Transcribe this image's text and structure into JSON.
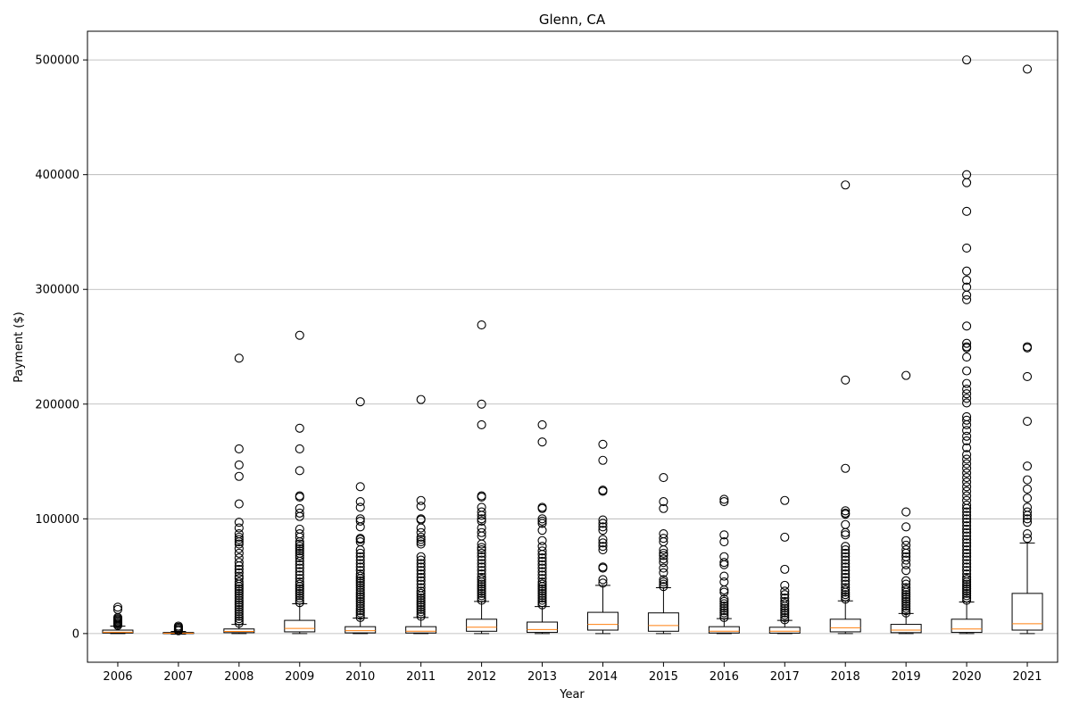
{
  "chart_data": {
    "type": "box",
    "title": "Glenn, CA",
    "xlabel": "Year",
    "ylabel": "Payment ($)",
    "ylim": [
      -25000,
      525000
    ],
    "yticks": [
      0,
      100000,
      200000,
      300000,
      400000,
      500000
    ],
    "ytick_labels": [
      "0",
      "100000",
      "200000",
      "300000",
      "400000",
      "500000"
    ],
    "grid": "y",
    "colors": {
      "box": "#000000",
      "median": "#ff7f0e",
      "grid": "#b0b0b0"
    },
    "categories": [
      "2006",
      "2007",
      "2008",
      "2009",
      "2010",
      "2011",
      "2012",
      "2013",
      "2014",
      "2015",
      "2016",
      "2017",
      "2018",
      "2019",
      "2020",
      "2021"
    ],
    "boxes": [
      {
        "year": "2006",
        "whislo": 0,
        "q1": 500,
        "med": 1200,
        "q3": 3000,
        "whishi": 6500,
        "fliers": [
          7000,
          8000,
          9000,
          10000,
          11000,
          12000,
          13000,
          14000,
          21000,
          23000
        ]
      },
      {
        "year": "2007",
        "whislo": -500,
        "q1": 0,
        "med": 300,
        "q3": 900,
        "whishi": 1800,
        "fliers": [
          2500,
          3500,
          4500,
          5500,
          6500
        ]
      },
      {
        "year": "2008",
        "whislo": 0,
        "q1": 800,
        "med": 1800,
        "q3": 4000,
        "whishi": 8000,
        "fliers": [
          9000,
          11000,
          13000,
          15000,
          17000,
          19000,
          21000,
          23000,
          25000,
          27000,
          29000,
          31000,
          33000,
          35000,
          37000,
          39000,
          41000,
          43000,
          45000,
          48000,
          50000,
          53000,
          56000,
          59000,
          62000,
          66000,
          70000,
          74000,
          78000,
          80000,
          82000,
          84000,
          87000,
          92000,
          97000,
          113000,
          137000,
          147000,
          161000,
          240000
        ]
      },
      {
        "year": "2009",
        "whislo": 0,
        "q1": 1500,
        "med": 4500,
        "q3": 11500,
        "whishi": 26000,
        "fliers": [
          27000,
          29000,
          31000,
          33000,
          35000,
          37000,
          39000,
          41000,
          43000,
          45000,
          48000,
          51000,
          54000,
          57000,
          60000,
          63000,
          66000,
          68000,
          70000,
          72000,
          74000,
          76000,
          78000,
          80000,
          84000,
          87000,
          91000,
          102000,
          105000,
          109000,
          119000,
          120000,
          142000,
          161000,
          179000,
          260000
        ]
      },
      {
        "year": "2010",
        "whislo": 0,
        "q1": 600,
        "med": 2500,
        "q3": 6000,
        "whishi": 13500,
        "fliers": [
          14000,
          16000,
          18000,
          20000,
          22000,
          24000,
          26000,
          28000,
          30000,
          32000,
          34000,
          36000,
          38000,
          40000,
          42000,
          44000,
          46000,
          48000,
          50000,
          52000,
          55000,
          58000,
          61000,
          64000,
          67000,
          70000,
          73000,
          80000,
          82000,
          83000,
          93000,
          98000,
          100000,
          110000,
          115000,
          128000,
          202000
        ]
      },
      {
        "year": "2011",
        "whislo": 0,
        "q1": 500,
        "med": 2000,
        "q3": 6000,
        "whishi": 14000,
        "fliers": [
          15000,
          17000,
          19000,
          21000,
          23000,
          25000,
          27000,
          29000,
          31000,
          33000,
          35000,
          37000,
          40000,
          43000,
          46000,
          49000,
          52000,
          55000,
          58000,
          61000,
          64000,
          67000,
          78000,
          80000,
          82000,
          84000,
          88000,
          92000,
          99000,
          100000,
          111000,
          116000,
          204000
        ]
      },
      {
        "year": "2012",
        "whislo": 0,
        "q1": 2000,
        "med": 5500,
        "q3": 12500,
        "whishi": 28000,
        "fliers": [
          29000,
          31000,
          33000,
          35000,
          37000,
          39000,
          41000,
          43000,
          45000,
          47000,
          49000,
          52000,
          55000,
          58000,
          61000,
          64000,
          67000,
          70000,
          73000,
          75000,
          78000,
          85000,
          88000,
          92000,
          98000,
          100000,
          103000,
          106000,
          110000,
          119000,
          120000,
          182000,
          200000,
          269000
        ]
      },
      {
        "year": "2013",
        "whislo": 0,
        "q1": 1000,
        "med": 3500,
        "q3": 10000,
        "whishi": 23500,
        "fliers": [
          25000,
          27000,
          29000,
          31000,
          33000,
          35000,
          37000,
          39000,
          41000,
          43000,
          45000,
          48000,
          51000,
          54000,
          57000,
          60000,
          63000,
          66000,
          69000,
          72000,
          76000,
          81000,
          90000,
          96000,
          98000,
          100000,
          109000,
          110000,
          167000,
          182000
        ]
      },
      {
        "year": "2014",
        "whislo": 0,
        "q1": 3000,
        "med": 8000,
        "q3": 18500,
        "whishi": 42000,
        "fliers": [
          44000,
          47000,
          57000,
          58000,
          73000,
          76000,
          79000,
          82000,
          90000,
          93000,
          96000,
          99000,
          124000,
          125000,
          151000,
          165000
        ]
      },
      {
        "year": "2015",
        "whislo": 0,
        "q1": 2000,
        "med": 7000,
        "q3": 18000,
        "whishi": 40000,
        "fliers": [
          41000,
          43000,
          45000,
          47000,
          53000,
          57000,
          62000,
          65000,
          68000,
          70000,
          73000,
          80000,
          83000,
          87000,
          109000,
          115000,
          136000
        ]
      },
      {
        "year": "2016",
        "whislo": 0,
        "q1": 500,
        "med": 2000,
        "q3": 6000,
        "whishi": 13000,
        "fliers": [
          14000,
          16000,
          18000,
          20000,
          22000,
          24000,
          26000,
          28000,
          30000,
          36000,
          38000,
          45000,
          50000,
          60000,
          62000,
          67000,
          80000,
          86000,
          115000,
          117000
        ]
      },
      {
        "year": "2017",
        "whislo": 0,
        "q1": 400,
        "med": 2000,
        "q3": 5500,
        "whishi": 11500,
        "fliers": [
          12000,
          14000,
          16000,
          18000,
          20000,
          22000,
          24000,
          26000,
          28000,
          31000,
          34000,
          37000,
          42000,
          56000,
          84000,
          116000
        ]
      },
      {
        "year": "2018",
        "whislo": 0,
        "q1": 1500,
        "med": 5000,
        "q3": 12500,
        "whishi": 28500,
        "fliers": [
          30000,
          32000,
          34000,
          36000,
          38000,
          40000,
          43000,
          46000,
          49000,
          52000,
          55000,
          58000,
          61000,
          64000,
          67000,
          70000,
          73000,
          76000,
          86000,
          88000,
          95000,
          104000,
          105000,
          107000,
          144000,
          221000,
          391000
        ]
      },
      {
        "year": "2019",
        "whislo": 0,
        "q1": 800,
        "med": 3000,
        "q3": 8000,
        "whishi": 17500,
        "fliers": [
          18000,
          20000,
          22000,
          24000,
          26000,
          28000,
          30000,
          32000,
          34000,
          36000,
          38000,
          40000,
          43000,
          46000,
          55000,
          60000,
          64000,
          67000,
          70000,
          73000,
          77000,
          81000,
          93000,
          106000,
          225000
        ]
      },
      {
        "year": "2020",
        "whislo": 0,
        "q1": 1000,
        "med": 4000,
        "q3": 12500,
        "whishi": 27500,
        "fliers": [
          29000,
          31000,
          33000,
          35000,
          37000,
          39000,
          41000,
          43000,
          45000,
          47000,
          49000,
          52000,
          55000,
          58000,
          61000,
          64000,
          67000,
          70000,
          73000,
          76000,
          79000,
          82000,
          85000,
          88000,
          91000,
          94000,
          97000,
          100000,
          103000,
          106000,
          109000,
          112000,
          116000,
          120000,
          124000,
          128000,
          132000,
          136000,
          140000,
          144000,
          148000,
          152000,
          156000,
          162000,
          168000,
          172000,
          177000,
          182000,
          186000,
          189000,
          201000,
          205000,
          209000,
          213000,
          218000,
          229000,
          241000,
          249000,
          250000,
          253000,
          268000,
          291000,
          295000,
          302000,
          308000,
          316000,
          336000,
          368000,
          393000,
          400000,
          500000
        ]
      },
      {
        "year": "2021",
        "whislo": 0,
        "q1": 3000,
        "med": 8500,
        "q3": 35000,
        "whishi": 79000,
        "fliers": [
          83000,
          87000,
          97000,
          100000,
          103000,
          106000,
          110000,
          118000,
          126000,
          134000,
          146000,
          185000,
          224000,
          249000,
          250000,
          492000
        ]
      }
    ]
  }
}
